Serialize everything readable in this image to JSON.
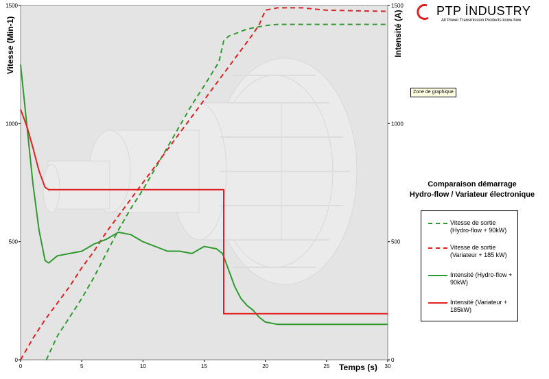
{
  "logo": {
    "name": "PTP İNDUSTRY",
    "tagline": "All Power Transmission Products know-how"
  },
  "tooltip": "Zone de graphique",
  "legend_title": {
    "line1": "Comparaison démarrage",
    "line2": "Hydro-flow / Variateur électronique"
  },
  "colors": {
    "green": "#2e9a2e",
    "red": "#e02020",
    "plot_bg": "#e4e4e4"
  },
  "chart_data": {
    "type": "line",
    "xlabel": "Temps (s)",
    "ylabel_left": "Vitesse (Min-1)",
    "ylabel_right": "Intensité (A)",
    "xlim": [
      0,
      30
    ],
    "ylim_left": [
      0,
      1500
    ],
    "ylim_right": [
      0,
      1500
    ],
    "x_ticks": [
      0,
      5,
      10,
      15,
      20,
      25,
      30
    ],
    "y_ticks_left": [
      0,
      500,
      1000,
      1500
    ],
    "y_ticks_right": [
      0,
      500,
      1000,
      1500
    ],
    "grid": false,
    "legend_position": "right",
    "series": [
      {
        "name": "Vitesse de sortie (Hydro-flow + 90kW)",
        "color": "#2e9a2e",
        "dashed": true,
        "axis": "left",
        "x": [
          2.1,
          3,
          4,
          5,
          6,
          7,
          8,
          9,
          10,
          11,
          12,
          13,
          14,
          15,
          15.6,
          16.2,
          16.6,
          17,
          17.5,
          18,
          18.5,
          19,
          19.5,
          20,
          21,
          25,
          30
        ],
        "y": [
          0,
          100,
          180,
          260,
          350,
          450,
          550,
          640,
          720,
          810,
          900,
          990,
          1080,
          1160,
          1210,
          1260,
          1350,
          1370,
          1380,
          1390,
          1400,
          1405,
          1410,
          1415,
          1420,
          1420,
          1420
        ]
      },
      {
        "name": "Vitesse de sortie (Variateur + 185 kW)",
        "color": "#e02020",
        "dashed": true,
        "axis": "left",
        "x": [
          0,
          1,
          2,
          3,
          4,
          5,
          6,
          7,
          8,
          9,
          10,
          11,
          12,
          13,
          14,
          15,
          16,
          17,
          18,
          19,
          19.5,
          20,
          21,
          22,
          23,
          24,
          25,
          27,
          30
        ],
        "y": [
          0,
          90,
          170,
          240,
          310,
          390,
          460,
          540,
          610,
          680,
          750,
          820,
          890,
          960,
          1030,
          1100,
          1170,
          1240,
          1310,
          1380,
          1420,
          1480,
          1490,
          1490,
          1490,
          1485,
          1480,
          1478,
          1475
        ]
      },
      {
        "name": "Intensité (Hydro-flow + 90kW)",
        "color": "#2e9a2e",
        "dashed": false,
        "axis": "right",
        "x": [
          0,
          0.5,
          1,
          1.5,
          2,
          2.3,
          3,
          4,
          5,
          6,
          7,
          8,
          9,
          10,
          11,
          12,
          13,
          14,
          15,
          16,
          16.5,
          17,
          17.5,
          18,
          18.5,
          19,
          19.5,
          20,
          21,
          25,
          30
        ],
        "y": [
          1250,
          1000,
          750,
          550,
          420,
          410,
          440,
          450,
          460,
          490,
          510,
          540,
          530,
          500,
          480,
          460,
          460,
          450,
          480,
          470,
          450,
          380,
          310,
          260,
          230,
          210,
          180,
          160,
          150,
          150,
          150
        ]
      },
      {
        "name": "Intensité (Variateur + 185kW)",
        "color": "#e02020",
        "dashed": false,
        "axis": "right",
        "x": [
          0,
          0.5,
          1,
          1.5,
          2,
          2.3,
          5,
          10,
          15,
          16.6,
          16.6,
          17,
          20,
          25,
          30
        ],
        "y": [
          1060,
          990,
          900,
          800,
          730,
          720,
          720,
          720,
          720,
          720,
          195,
          195,
          195,
          195,
          195
        ]
      }
    ]
  }
}
